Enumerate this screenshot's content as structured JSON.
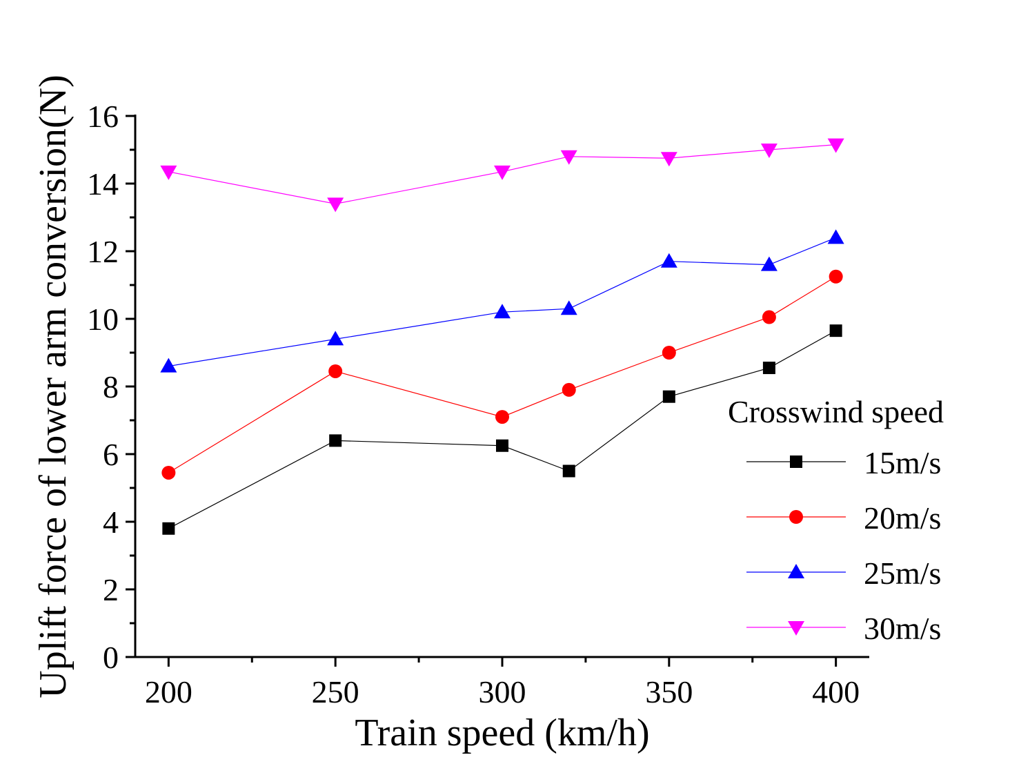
{
  "chart_data": {
    "type": "line",
    "title": "",
    "xlabel": "Train speed (km/h)",
    "ylabel": "Uplift force of lower arm conversion(N)",
    "xlim": [
      190,
      410
    ],
    "ylim": [
      0,
      16
    ],
    "x_ticks": [
      200,
      250,
      300,
      350,
      400
    ],
    "y_ticks": [
      0,
      2,
      4,
      6,
      8,
      10,
      12,
      14,
      16
    ],
    "grid": false,
    "legend_title": "Crosswind speed",
    "legend_position": "right",
    "x": [
      200,
      250,
      300,
      320,
      350,
      380,
      400
    ],
    "series": [
      {
        "name": "15m/s",
        "color": "#000000",
        "marker": "square",
        "values": [
          3.8,
          6.4,
          6.25,
          5.5,
          7.7,
          8.55,
          9.65
        ]
      },
      {
        "name": "20m/s",
        "color": "#ff0000",
        "marker": "circle",
        "values": [
          5.45,
          8.45,
          7.1,
          7.9,
          9.0,
          10.05,
          11.25
        ]
      },
      {
        "name": "25m/s",
        "color": "#0000ff",
        "marker": "triangle-up",
        "values": [
          8.6,
          9.4,
          10.2,
          10.3,
          11.7,
          11.6,
          12.4
        ]
      },
      {
        "name": "30m/s",
        "color": "#ff00ff",
        "marker": "triangle-down",
        "values": [
          14.35,
          13.4,
          14.35,
          14.8,
          14.75,
          15.0,
          15.15
        ]
      }
    ]
  }
}
